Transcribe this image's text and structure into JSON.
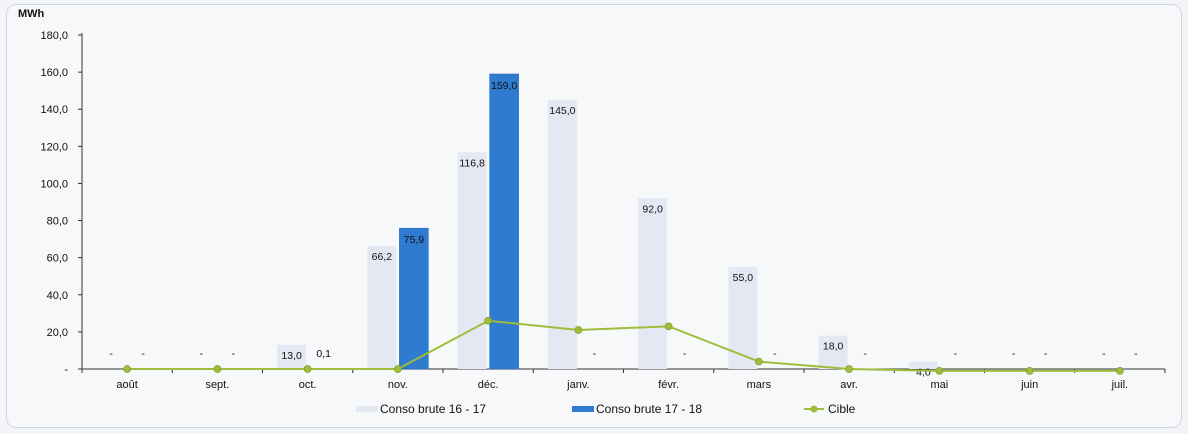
{
  "chart_data": {
    "type": "bar",
    "ylabel": "MWh",
    "ylim": [
      0,
      180
    ],
    "yticks": [
      "-",
      "20,0",
      "40,0",
      "60,0",
      "80,0",
      "100,0",
      "120,0",
      "140,0",
      "160,0",
      "180,0"
    ],
    "categories": [
      "août",
      "sept.",
      "oct.",
      "nov.",
      "déc.",
      "janv.",
      "févr.",
      "mars",
      "avr.",
      "mai",
      "juin",
      "juil."
    ],
    "series": [
      {
        "name": "Conso brute 16 - 17",
        "kind": "bar",
        "color": "#e3e8f2",
        "values": [
          0,
          0,
          13.0,
          66.2,
          116.8,
          145.0,
          92.0,
          55.0,
          18.0,
          4.0,
          0,
          0
        ],
        "labels": [
          "-",
          "-",
          "13,0",
          "66,2",
          "116,8",
          "145,0",
          "92,0",
          "55,0",
          "18,0",
          "4,0",
          "-",
          "-"
        ]
      },
      {
        "name": "Conso brute 17 - 18",
        "kind": "bar",
        "color": "#2f7bd0",
        "values": [
          0,
          0,
          0.1,
          75.9,
          159.0,
          null,
          null,
          null,
          null,
          null,
          null,
          null
        ],
        "labels": [
          "-",
          "-",
          "0,1",
          "75,9",
          "159,0",
          "-",
          "-",
          "-",
          "-",
          "-",
          "-",
          "-"
        ]
      },
      {
        "name": "Cible",
        "kind": "line",
        "color": "#9fbd3a",
        "values": [
          0,
          0,
          0,
          0,
          26,
          21,
          23,
          4,
          0,
          -1,
          -1,
          -1
        ]
      }
    ],
    "legend_position": "bottom",
    "grid": false
  }
}
